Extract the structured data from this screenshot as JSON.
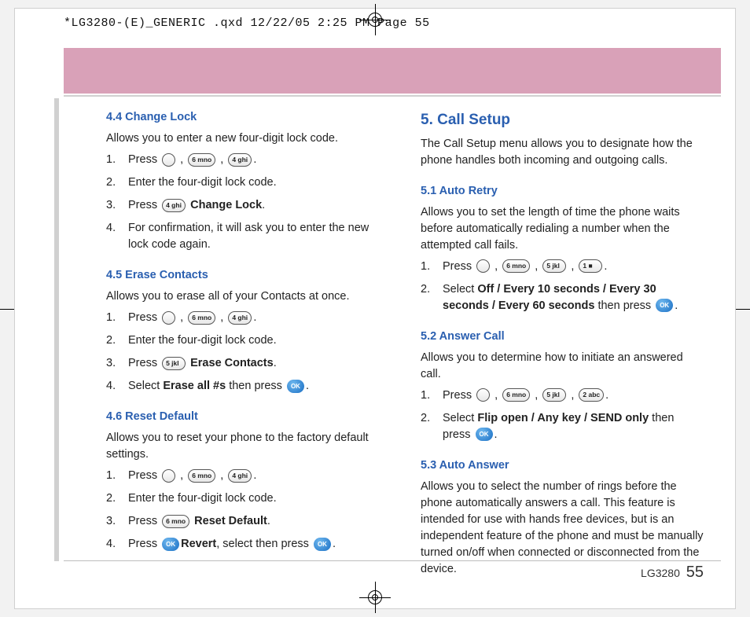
{
  "header_line": "*LG3280-(E)_GENERIC .qxd  12/22/05  2:25 PM  Page 55",
  "footer_model": "LG3280",
  "footer_page": "55",
  "keys": {
    "nav": " ",
    "k6": "6 mno",
    "k5": "5 jkl",
    "k4": "4 ghi",
    "k2": "2 abc",
    "k1": "1 ■",
    "ok": "OK"
  },
  "left": {
    "s44": {
      "h": "4.4 Change Lock",
      "intro": "Allows you to enter a new four-digit lock code.",
      "steps": [
        {
          "pre": "Press ",
          "seq": [
            "nav",
            "k6",
            "k4"
          ],
          "post": "."
        },
        {
          "text": "Enter the four-digit lock code."
        },
        {
          "pre": "Press ",
          "seq": [
            "k4"
          ],
          "bold": " Change Lock",
          "post": "."
        },
        {
          "text": "For confirmation, it will ask you to enter the new lock code again."
        }
      ]
    },
    "s45": {
      "h": "4.5 Erase Contacts",
      "intro": "Allows you to erase all of your Contacts at once.",
      "steps": [
        {
          "pre": "Press ",
          "seq": [
            "nav",
            "k6",
            "k4"
          ],
          "post": "."
        },
        {
          "text": "Enter the four-digit lock code."
        },
        {
          "pre": "Press ",
          "seq": [
            "k5"
          ],
          "bold": " Erase Contacts",
          "post": "."
        },
        {
          "pre": "Select ",
          "bold": "Erase all #s",
          "mid": " then press ",
          "seq2": [
            "ok"
          ],
          "post": "."
        }
      ]
    },
    "s46": {
      "h": "4.6 Reset Default",
      "intro": "Allows you to reset your phone to the factory default settings.",
      "steps": [
        {
          "pre": "Press ",
          "seq": [
            "nav",
            "k6",
            "k4"
          ],
          "post": "."
        },
        {
          "text": "Enter the four-digit lock code."
        },
        {
          "pre": "Press ",
          "seq": [
            "k6"
          ],
          "bold": " Reset Default",
          "post": "."
        },
        {
          "pre": "Press ",
          "seq": [
            "ok"
          ],
          "mid": ", select ",
          "bold": "Revert",
          "mid2": " then press ",
          "seq2": [
            "ok"
          ],
          "post": "."
        }
      ]
    }
  },
  "right": {
    "h": "5. Call Setup",
    "intro": "The Call Setup menu allows you to designate how the phone handles both incoming and outgoing calls.",
    "s51": {
      "h": "5.1 Auto Retry",
      "intro": "Allows you to set the length of time the phone waits before automatically redialing a number when the attempted call fails.",
      "steps": [
        {
          "pre": "Press ",
          "seq": [
            "nav",
            "k6",
            "k5",
            "k1"
          ],
          "post": "."
        },
        {
          "pre": "Select ",
          "bold": "Off / Every 10 seconds / Every 30 seconds / Every 60 seconds",
          "mid": "  then press  ",
          "seq2": [
            "ok"
          ],
          "post": "."
        }
      ]
    },
    "s52": {
      "h": "5.2 Answer Call",
      "intro": "Allows you to determine how to initiate an answered call.",
      "steps": [
        {
          "pre": "Press ",
          "seq": [
            "nav",
            "k6",
            "k5",
            "k2"
          ],
          "post": "."
        },
        {
          "pre": "Select ",
          "bold": "Flip open / Any key / SEND only",
          "mid": " then press  ",
          "seq2": [
            "ok"
          ],
          "post": "."
        }
      ]
    },
    "s53": {
      "h": "5.3 Auto Answer",
      "intro": "Allows you to select the number of rings before the phone automatically answers a call. This feature is intended for use with hands free devices, but is an independent feature of the phone and must be manually turned on/off when connected or disconnected from the device."
    }
  }
}
